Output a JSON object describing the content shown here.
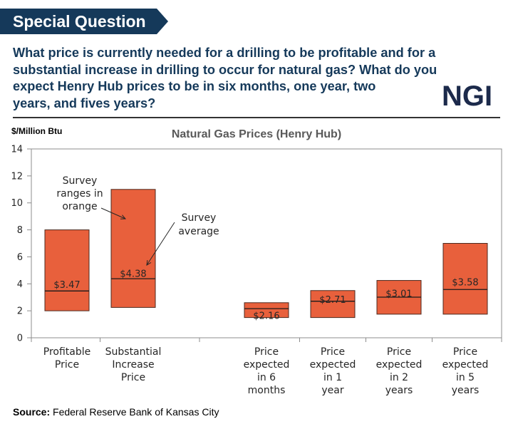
{
  "header": {
    "title": "Special Question",
    "banner_color": "#15395a"
  },
  "question": {
    "lines": [
      "What price is currently needed for a drilling to be profitable and for a",
      "substantial increase in drilling to occur for natural gas? What do you",
      "expect Henry Hub prices to be in six months, one year, two",
      "years, and fives years?"
    ]
  },
  "logo": {
    "text": "NGI"
  },
  "source": {
    "label": "Source:",
    "text": "Federal Reserve Bank of Kansas City"
  },
  "chart_data": {
    "type": "bar",
    "title": "Natural Gas Prices (Henry Hub)",
    "ylabel": "$/Million Btu",
    "ylim": [
      0,
      14
    ],
    "yticks": [
      0,
      2,
      4,
      6,
      8,
      10,
      12,
      14
    ],
    "grid": false,
    "bar_color": "#e8603c",
    "categories": [
      [
        "Profitable",
        "Price"
      ],
      [
        "Substantial",
        "Increase",
        "Price"
      ],
      [
        "Price",
        "expected",
        "in 6",
        "months"
      ],
      [
        "Price",
        "expected",
        "in 1",
        "year"
      ],
      [
        "Price",
        "expected",
        "in 2",
        "years"
      ],
      [
        "Price",
        "expected",
        "in 5",
        "years"
      ]
    ],
    "series": [
      {
        "name": "Survey ranges in orange",
        "low": [
          2.0,
          2.25,
          1.5,
          1.5,
          1.75,
          1.75
        ],
        "high": [
          8.0,
          11.0,
          2.6,
          3.5,
          4.25,
          7.0
        ]
      },
      {
        "name": "Survey average",
        "values": [
          3.47,
          4.38,
          2.16,
          2.71,
          3.01,
          3.58
        ]
      }
    ],
    "data_labels": [
      "$3.47",
      "$4.38",
      "$2.16",
      "$2.71",
      "$3.01",
      "$3.58"
    ],
    "annotations": [
      {
        "text": [
          "Survey",
          "ranges in",
          "orange"
        ]
      },
      {
        "text": [
          "Survey",
          "average"
        ]
      }
    ]
  }
}
